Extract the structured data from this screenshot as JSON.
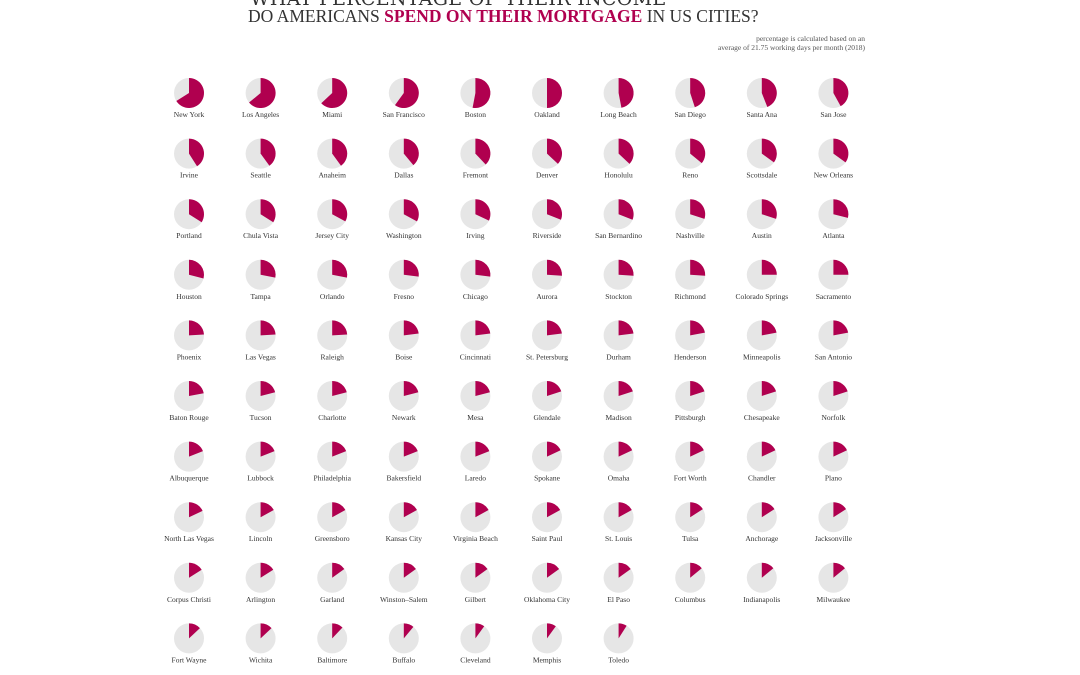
{
  "chart_data": {
    "type": "pie",
    "title_line1": "WHAT PERCENTAGE OF THEIR INCOME",
    "title_line2_pre": "DO AMERICANS ",
    "title_line2_highlight": "SPEND ON THEIR MORTGAGE",
    "title_line2_post": " IN US CITIES?",
    "note_line1": "percentage is calculated based on an",
    "note_line2": "average of 21.75 working days per month (2018)",
    "colors": {
      "share": "#b0004f",
      "rest": "#e6e6e6"
    },
    "cities": [
      "New York",
      "Los Angeles",
      "Miami",
      "San Francisco",
      "Boston",
      "Oakland",
      "Long Beach",
      "San Diego",
      "Santa Ana",
      "San Jose",
      "Irvine",
      "Seattle",
      "Anaheim",
      "Dallas",
      "Fremont",
      "Denver",
      "Honolulu",
      "Reno",
      "Scottsdale",
      "New Orleans",
      "Portland",
      "Chula Vista",
      "Jersey City",
      "Washington",
      "Irving",
      "Riverside",
      "San Bernardino",
      "Nashville",
      "Austin",
      "Atlanta",
      "Houston",
      "Tampa",
      "Orlando",
      "Fresno",
      "Chicago",
      "Aurora",
      "Stockton",
      "Richmond",
      "Colorado Springs",
      "Sacramento",
      "Phoenix",
      "Las Vegas",
      "Raleigh",
      "Boise",
      "Cincinnati",
      "St. Petersburg",
      "Durham",
      "Henderson",
      "Minneapolis",
      "San Antonio",
      "Baton Rouge",
      "Tucson",
      "Charlotte",
      "Newark",
      "Mesa",
      "Glendale",
      "Madison",
      "Pittsburgh",
      "Chesapeake",
      "Norfolk",
      "Albuquerque",
      "Lubbock",
      "Philadelphia",
      "Bakersfield",
      "Laredo",
      "Spokane",
      "Omaha",
      "Fort Worth",
      "Chandler",
      "Plano",
      "North Las Vegas",
      "Lincoln",
      "Greensboro",
      "Kansas City",
      "Virginia Beach",
      "Saint Paul",
      "St. Louis",
      "Tulsa",
      "Anchorage",
      "Jacksonville",
      "Corpus Christi",
      "Arlington",
      "Garland",
      "Winston–Salem",
      "Gilbert",
      "Oklahoma City",
      "El Paso",
      "Columbus",
      "Indianapolis",
      "Milwaukee",
      "Fort Wayne",
      "Wichita",
      "Baltimore",
      "Buffalo",
      "Cleveland",
      "Memphis",
      "Toledo"
    ],
    "values": [
      0.66,
      0.64,
      0.63,
      0.6,
      0.53,
      0.5,
      0.47,
      0.45,
      0.44,
      0.42,
      0.41,
      0.4,
      0.4,
      0.39,
      0.38,
      0.37,
      0.37,
      0.36,
      0.35,
      0.35,
      0.34,
      0.34,
      0.33,
      0.33,
      0.32,
      0.31,
      0.31,
      0.3,
      0.3,
      0.29,
      0.29,
      0.28,
      0.28,
      0.27,
      0.27,
      0.26,
      0.26,
      0.26,
      0.25,
      0.25,
      0.24,
      0.24,
      0.24,
      0.23,
      0.23,
      0.23,
      0.23,
      0.22,
      0.22,
      0.22,
      0.22,
      0.21,
      0.21,
      0.21,
      0.21,
      0.2,
      0.2,
      0.2,
      0.2,
      0.2,
      0.19,
      0.19,
      0.19,
      0.19,
      0.19,
      0.18,
      0.18,
      0.18,
      0.18,
      0.18,
      0.18,
      0.17,
      0.17,
      0.17,
      0.17,
      0.17,
      0.17,
      0.16,
      0.16,
      0.16,
      0.16,
      0.16,
      0.15,
      0.15,
      0.15,
      0.15,
      0.15,
      0.14,
      0.14,
      0.14,
      0.13,
      0.13,
      0.12,
      0.11,
      0.1,
      0.1,
      0.09
    ]
  }
}
